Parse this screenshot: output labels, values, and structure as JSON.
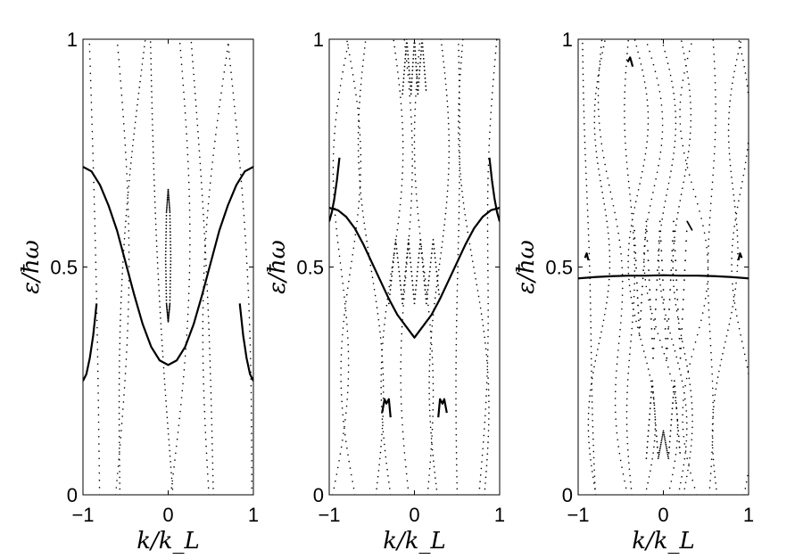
{
  "chart_data": [
    {
      "type": "scatter",
      "panel": "left",
      "xlabel": "k/k_L",
      "ylabel": "ε/ħω",
      "xlim": [
        -1,
        1
      ],
      "ylim": [
        0,
        1
      ],
      "x_ticks": [
        -1,
        0,
        1
      ],
      "x_tick_labels": [
        "−1",
        "0",
        "1"
      ],
      "y_ticks": [
        0,
        0.5,
        1
      ],
      "y_tick_labels": [
        "0",
        "0.5",
        "1"
      ],
      "grid": false,
      "series": [
        {
          "style": "solid-line",
          "x": [
            -1.0,
            -0.9,
            -0.8,
            -0.7,
            -0.6,
            -0.5,
            -0.4,
            -0.3,
            -0.2,
            -0.1,
            0.0,
            0.1,
            0.2,
            0.3,
            0.4,
            0.5,
            0.6,
            0.7,
            0.8,
            0.9,
            1.0
          ],
          "y": [
            0.72,
            0.71,
            0.68,
            0.635,
            0.58,
            0.51,
            0.44,
            0.375,
            0.325,
            0.295,
            0.285,
            0.295,
            0.325,
            0.375,
            0.44,
            0.51,
            0.58,
            0.635,
            0.68,
            0.71,
            0.72
          ]
        },
        {
          "style": "solid-line",
          "x": [
            -1.0,
            -0.96,
            -0.92,
            -0.88,
            -0.84
          ],
          "y": [
            0.25,
            0.265,
            0.3,
            0.35,
            0.42
          ]
        },
        {
          "style": "solid-line",
          "x": [
            0.84,
            0.88,
            0.92,
            0.96,
            1.0
          ],
          "y": [
            0.42,
            0.35,
            0.3,
            0.265,
            0.25
          ]
        },
        {
          "style": "dotted-loop",
          "x": [
            0.0,
            -0.02,
            -0.03,
            -0.02,
            0.0,
            0.02,
            0.03,
            0.02,
            0.0
          ],
          "y": [
            0.38,
            0.42,
            0.52,
            0.62,
            0.67,
            0.62,
            0.52,
            0.42,
            0.38
          ]
        }
      ]
    },
    {
      "type": "scatter",
      "panel": "middle",
      "xlabel": "k/k_L",
      "ylabel": "ε/ħω",
      "xlim": [
        -1,
        1
      ],
      "ylim": [
        0,
        1
      ],
      "x_ticks": [
        -1,
        0,
        1
      ],
      "x_tick_labels": [
        "−1",
        "0",
        "1"
      ],
      "y_ticks": [
        0,
        0.5,
        1
      ],
      "y_tick_labels": [
        "0",
        "0.5",
        "1"
      ],
      "grid": false,
      "series": [
        {
          "style": "solid-line",
          "x": [
            -1.0,
            -0.9,
            -0.8,
            -0.7,
            -0.6,
            -0.5,
            -0.4,
            -0.3,
            -0.2,
            -0.1,
            0.0,
            0.1,
            0.2,
            0.3,
            0.4,
            0.5,
            0.6,
            0.7,
            0.8,
            0.9,
            1.0
          ],
          "y": [
            0.63,
            0.625,
            0.61,
            0.585,
            0.55,
            0.51,
            0.47,
            0.43,
            0.395,
            0.37,
            0.345,
            0.37,
            0.395,
            0.43,
            0.47,
            0.51,
            0.55,
            0.585,
            0.61,
            0.625,
            0.63
          ]
        },
        {
          "style": "solid-line",
          "x": [
            -1.0,
            -0.97,
            -0.94,
            -0.91,
            -0.88
          ],
          "y": [
            0.6,
            0.62,
            0.65,
            0.69,
            0.74
          ]
        },
        {
          "style": "solid-line",
          "x": [
            0.88,
            0.91,
            0.94,
            0.97,
            1.0
          ],
          "y": [
            0.74,
            0.69,
            0.65,
            0.62,
            0.6
          ]
        },
        {
          "style": "solid-line",
          "x": [
            -0.38,
            -0.35,
            -0.33,
            -0.3,
            -0.28
          ],
          "y": [
            0.18,
            0.21,
            0.2,
            0.21,
            0.17
          ]
        },
        {
          "style": "solid-line",
          "x": [
            0.28,
            0.3,
            0.33,
            0.35,
            0.38
          ],
          "y": [
            0.17,
            0.21,
            0.2,
            0.21,
            0.18
          ]
        },
        {
          "style": "dotted-line",
          "x": [
            -0.3,
            -0.22,
            -0.14,
            -0.07,
            0.0,
            0.07,
            0.14,
            0.22,
            0.3
          ],
          "y": [
            0.42,
            0.56,
            0.42,
            0.56,
            0.42,
            0.56,
            0.42,
            0.56,
            0.42
          ]
        },
        {
          "style": "dotted-line",
          "x": [
            -0.14,
            -0.09,
            -0.04,
            0.0,
            0.04,
            0.09,
            0.14
          ],
          "y": [
            0.88,
            1.0,
            0.88,
            1.0,
            0.88,
            1.0,
            0.88
          ]
        }
      ]
    },
    {
      "type": "scatter",
      "panel": "right",
      "xlabel": "k/k_L",
      "ylabel": "ε/ħω",
      "xlim": [
        -1,
        1
      ],
      "ylim": [
        0,
        1
      ],
      "x_ticks": [
        -1,
        0,
        1
      ],
      "x_tick_labels": [
        "−1",
        "0",
        "1"
      ],
      "y_ticks": [
        0,
        0.5,
        1
      ],
      "y_tick_labels": [
        "0",
        "0.5",
        "1"
      ],
      "grid": false,
      "series": [
        {
          "style": "solid-line",
          "x": [
            -1.0,
            -0.8,
            -0.6,
            -0.4,
            -0.2,
            0.0,
            0.2,
            0.4,
            0.6,
            0.8,
            1.0
          ],
          "y": [
            0.475,
            0.478,
            0.48,
            0.481,
            0.481,
            0.482,
            0.481,
            0.481,
            0.48,
            0.478,
            0.475
          ]
        },
        {
          "style": "solid-line",
          "x": [
            -0.92,
            -0.9,
            -0.88
          ],
          "y": [
            0.52,
            0.53,
            0.515
          ]
        },
        {
          "style": "solid-line",
          "x": [
            0.88,
            0.9,
            0.92
          ],
          "y": [
            0.515,
            0.53,
            0.52
          ]
        },
        {
          "style": "solid-line",
          "x": [
            -0.42,
            -0.39,
            -0.36
          ],
          "y": [
            0.95,
            0.96,
            0.94
          ]
        },
        {
          "style": "dotted-line",
          "x": [
            -0.34,
            -0.28,
            -0.2,
            -0.12,
            -0.04,
            0.04,
            0.12,
            0.2,
            0.28,
            0.34
          ],
          "y": [
            0.58,
            0.35,
            0.6,
            0.3,
            0.6,
            0.3,
            0.6,
            0.3,
            0.6,
            0.58
          ]
        },
        {
          "style": "dotted-line",
          "x": [
            -0.2,
            -0.13,
            -0.06,
            0.0,
            0.06,
            0.13,
            0.2
          ],
          "y": [
            0.08,
            0.25,
            0.08,
            0.14,
            0.08,
            0.25,
            0.08
          ]
        }
      ]
    }
  ],
  "decor": {
    "dot_color": "#000000",
    "line_color": "#000000",
    "background": "#ffffff"
  }
}
